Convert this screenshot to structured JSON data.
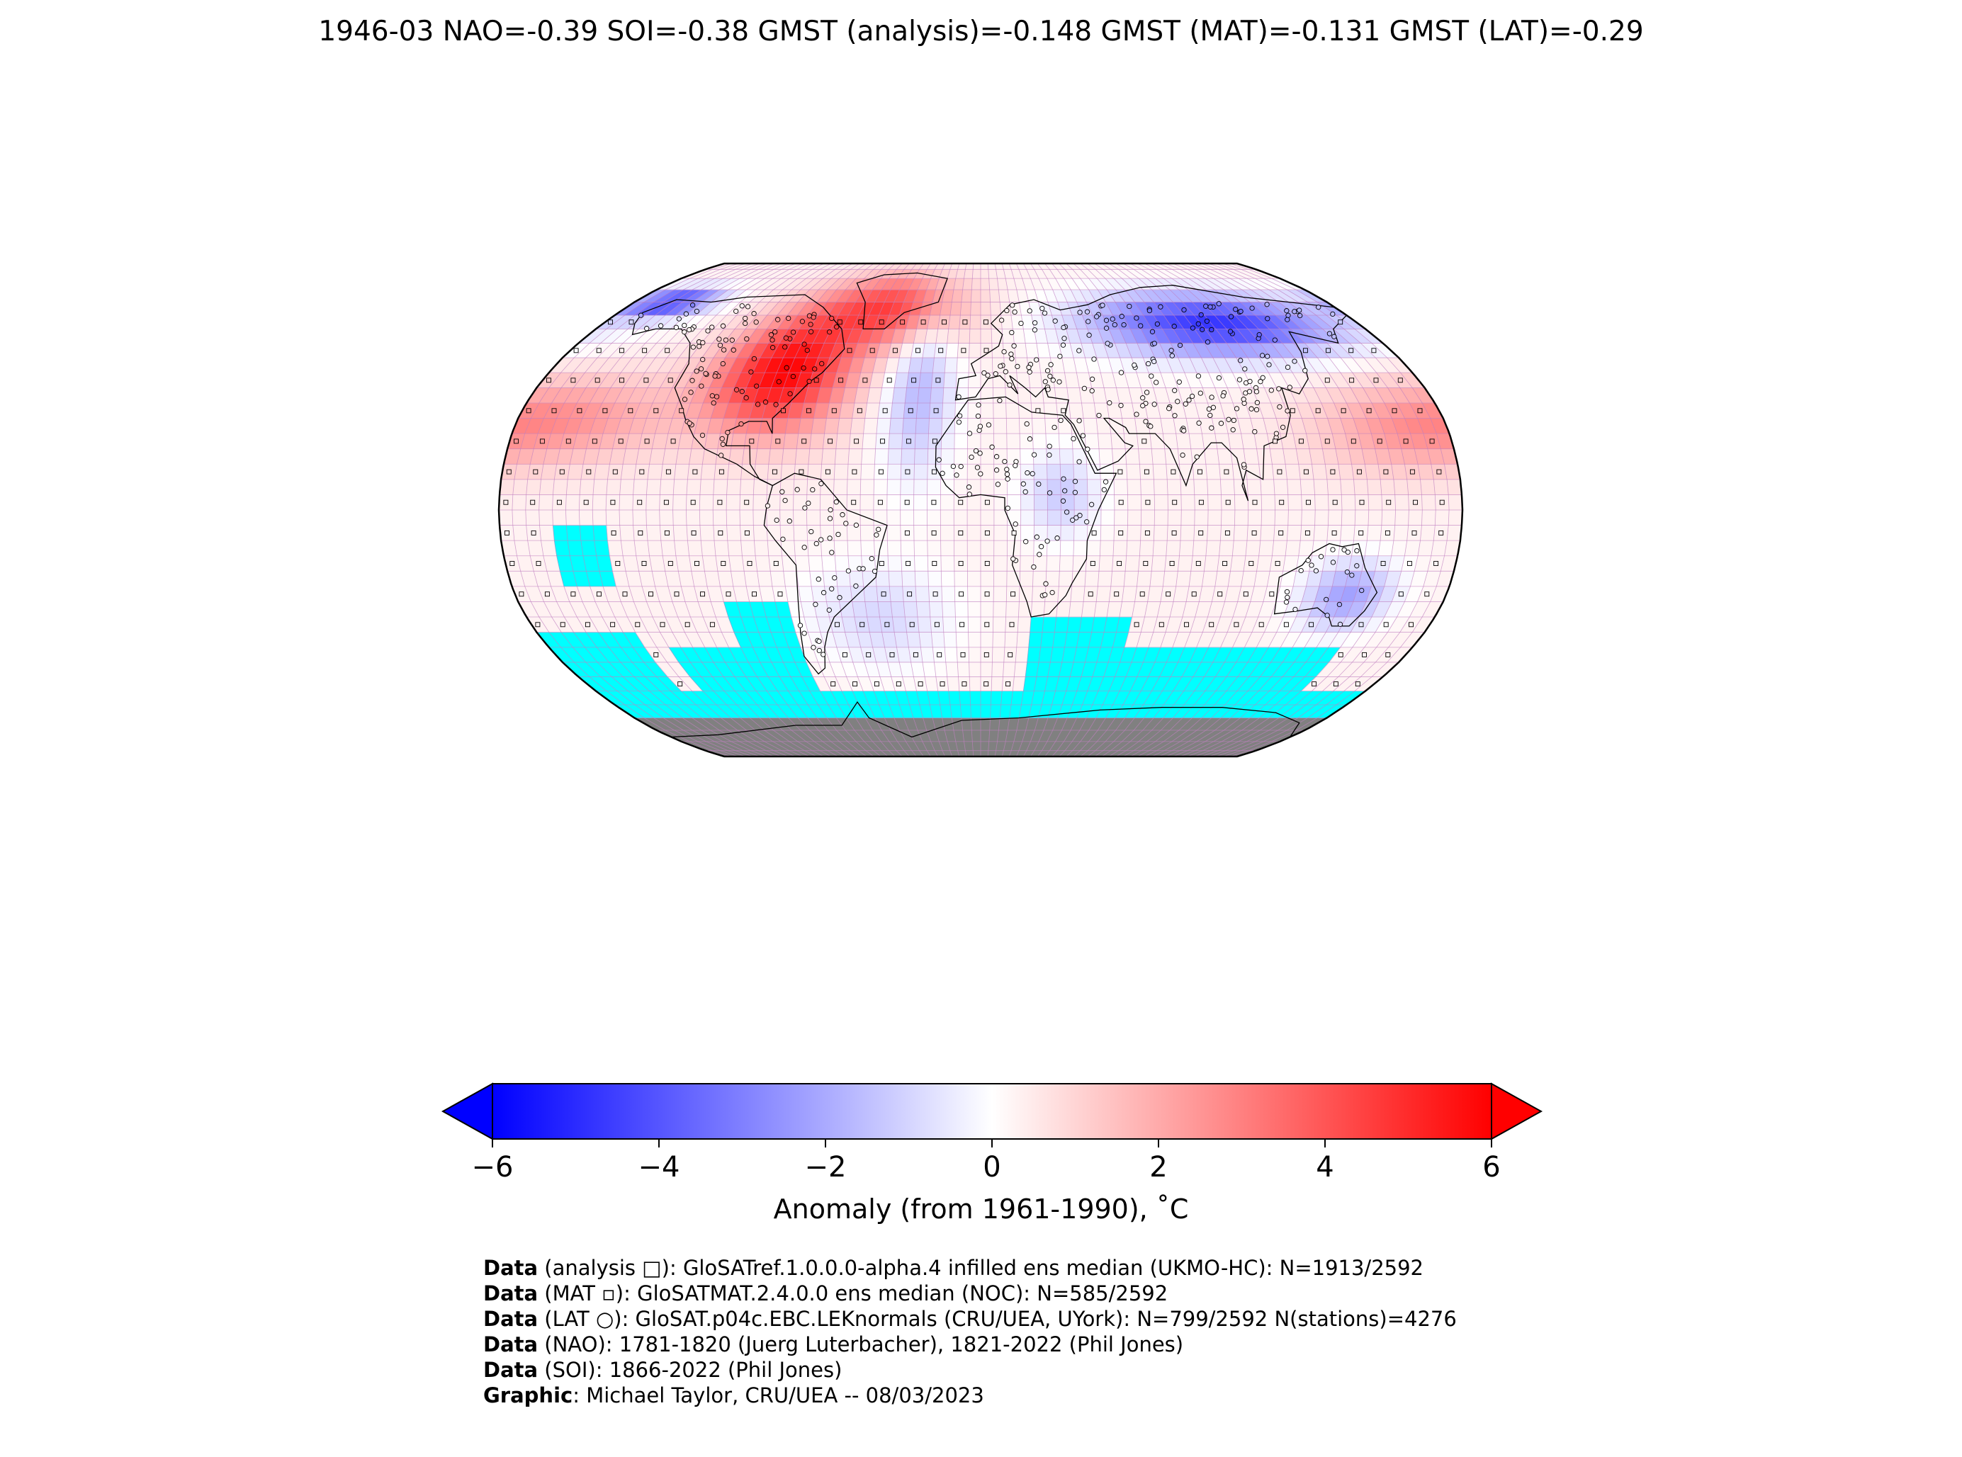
{
  "title": "1946-03 NAO=-0.39 SOI=-0.38 GMST (analysis)=-0.148 GMST (MAT)=-0.131 GMST (LAT)=-0.29",
  "colorbar": {
    "label": "Anomaly (from 1961-1990), ˚C",
    "ticks": [
      "−6",
      "−4",
      "−2",
      "0",
      "2",
      "4",
      "6"
    ],
    "tick_values": [
      -6,
      -4,
      -2,
      0,
      2,
      4,
      6
    ],
    "range": [
      -6,
      6
    ],
    "colors": {
      "low": "#0000ff",
      "mid": "#ffffff",
      "high": "#ff0000"
    },
    "extend": "both"
  },
  "map": {
    "projection": "Robinson",
    "ocean_gap_color": "#00ffff",
    "antarctica_color": "#808080",
    "grid_line_color": "#c080c0"
  },
  "credits": [
    {
      "bold": "Data",
      "text": " (analysis □): GloSATref.1.0.0.0-alpha.4 infilled ens median (UKMO-HC): N=1913/2592"
    },
    {
      "bold": "Data",
      "text": " (MAT ▫): GloSATMAT.2.4.0.0 ens median (NOC): N=585/2592"
    },
    {
      "bold": "Data",
      "text": " (LAT ○): GloSAT.p04c.EBC.LEKnormals (CRU/UEA, UYork): N=799/2592 N(stations)=4276"
    },
    {
      "bold": "Data",
      "text": " (NAO): 1781-1820 (Juerg Luterbacher), 1821-2022 (Phil Jones)"
    },
    {
      "bold": "Data",
      "text": " (SOI): 1866-2022 (Phil Jones)"
    },
    {
      "bold": "Graphic",
      "text": ": Michael Taylor, CRU/UEA -- 08/03/2023"
    }
  ]
}
